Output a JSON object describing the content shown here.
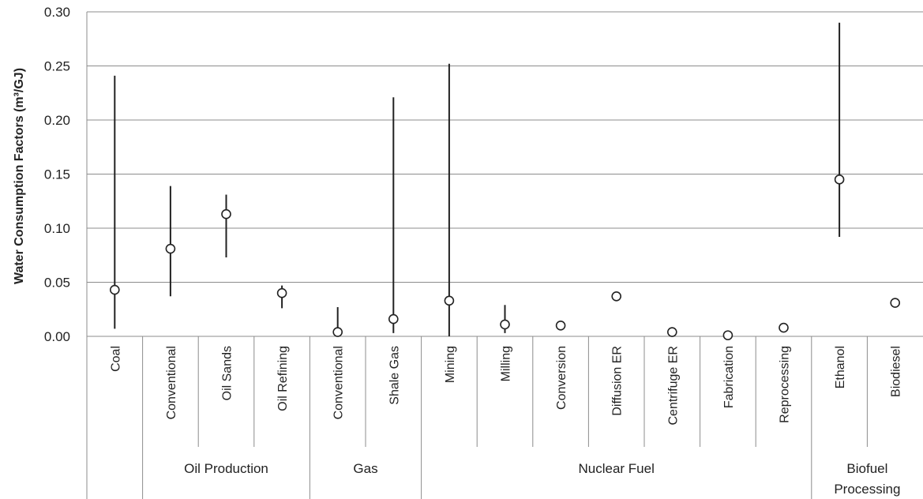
{
  "chart_data": {
    "type": "scatter",
    "ylabel": "Water Consumption Factors (m³/GJ)",
    "ylim": [
      0,
      0.3
    ],
    "yticks": [
      "0.00",
      "0.05",
      "0.10",
      "0.15",
      "0.20",
      "0.25",
      "0.30"
    ],
    "grid": true,
    "categories": [
      "Coal",
      "Conventional",
      "Oil Sands",
      "Oil Refining",
      "Conventional",
      "Shale Gas",
      "Mining",
      "Milling",
      "Conversion",
      "Diffusion ER",
      "Centrifuge ER",
      "Fabrication",
      "Reprocessing",
      "Ethanol",
      "Biodiesel"
    ],
    "groups": [
      {
        "label": "",
        "start": 0,
        "end": 0
      },
      {
        "label": "Oil Production",
        "start": 1,
        "end": 3
      },
      {
        "label": "Gas",
        "start": 4,
        "end": 5
      },
      {
        "label": "Nuclear Fuel",
        "start": 6,
        "end": 12
      },
      {
        "label": "Biofuel Processing",
        "start": 13,
        "end": 14
      }
    ],
    "series": [
      {
        "values": [
          0.043,
          0.081,
          0.113,
          0.04,
          0.004,
          0.016,
          0.033,
          0.011,
          0.01,
          0.037,
          0.004,
          0.001,
          0.008,
          0.145,
          0.031
        ],
        "ranges": [
          [
            0.007,
            0.241
          ],
          [
            0.037,
            0.139
          ],
          [
            0.073,
            0.131
          ],
          [
            0.026,
            0.047
          ],
          [
            0.0,
            0.027
          ],
          [
            0.003,
            0.221
          ],
          [
            0.0,
            0.252
          ],
          [
            0.003,
            0.029
          ],
          null,
          null,
          null,
          null,
          null,
          [
            0.092,
            0.29
          ],
          null
        ]
      }
    ]
  }
}
